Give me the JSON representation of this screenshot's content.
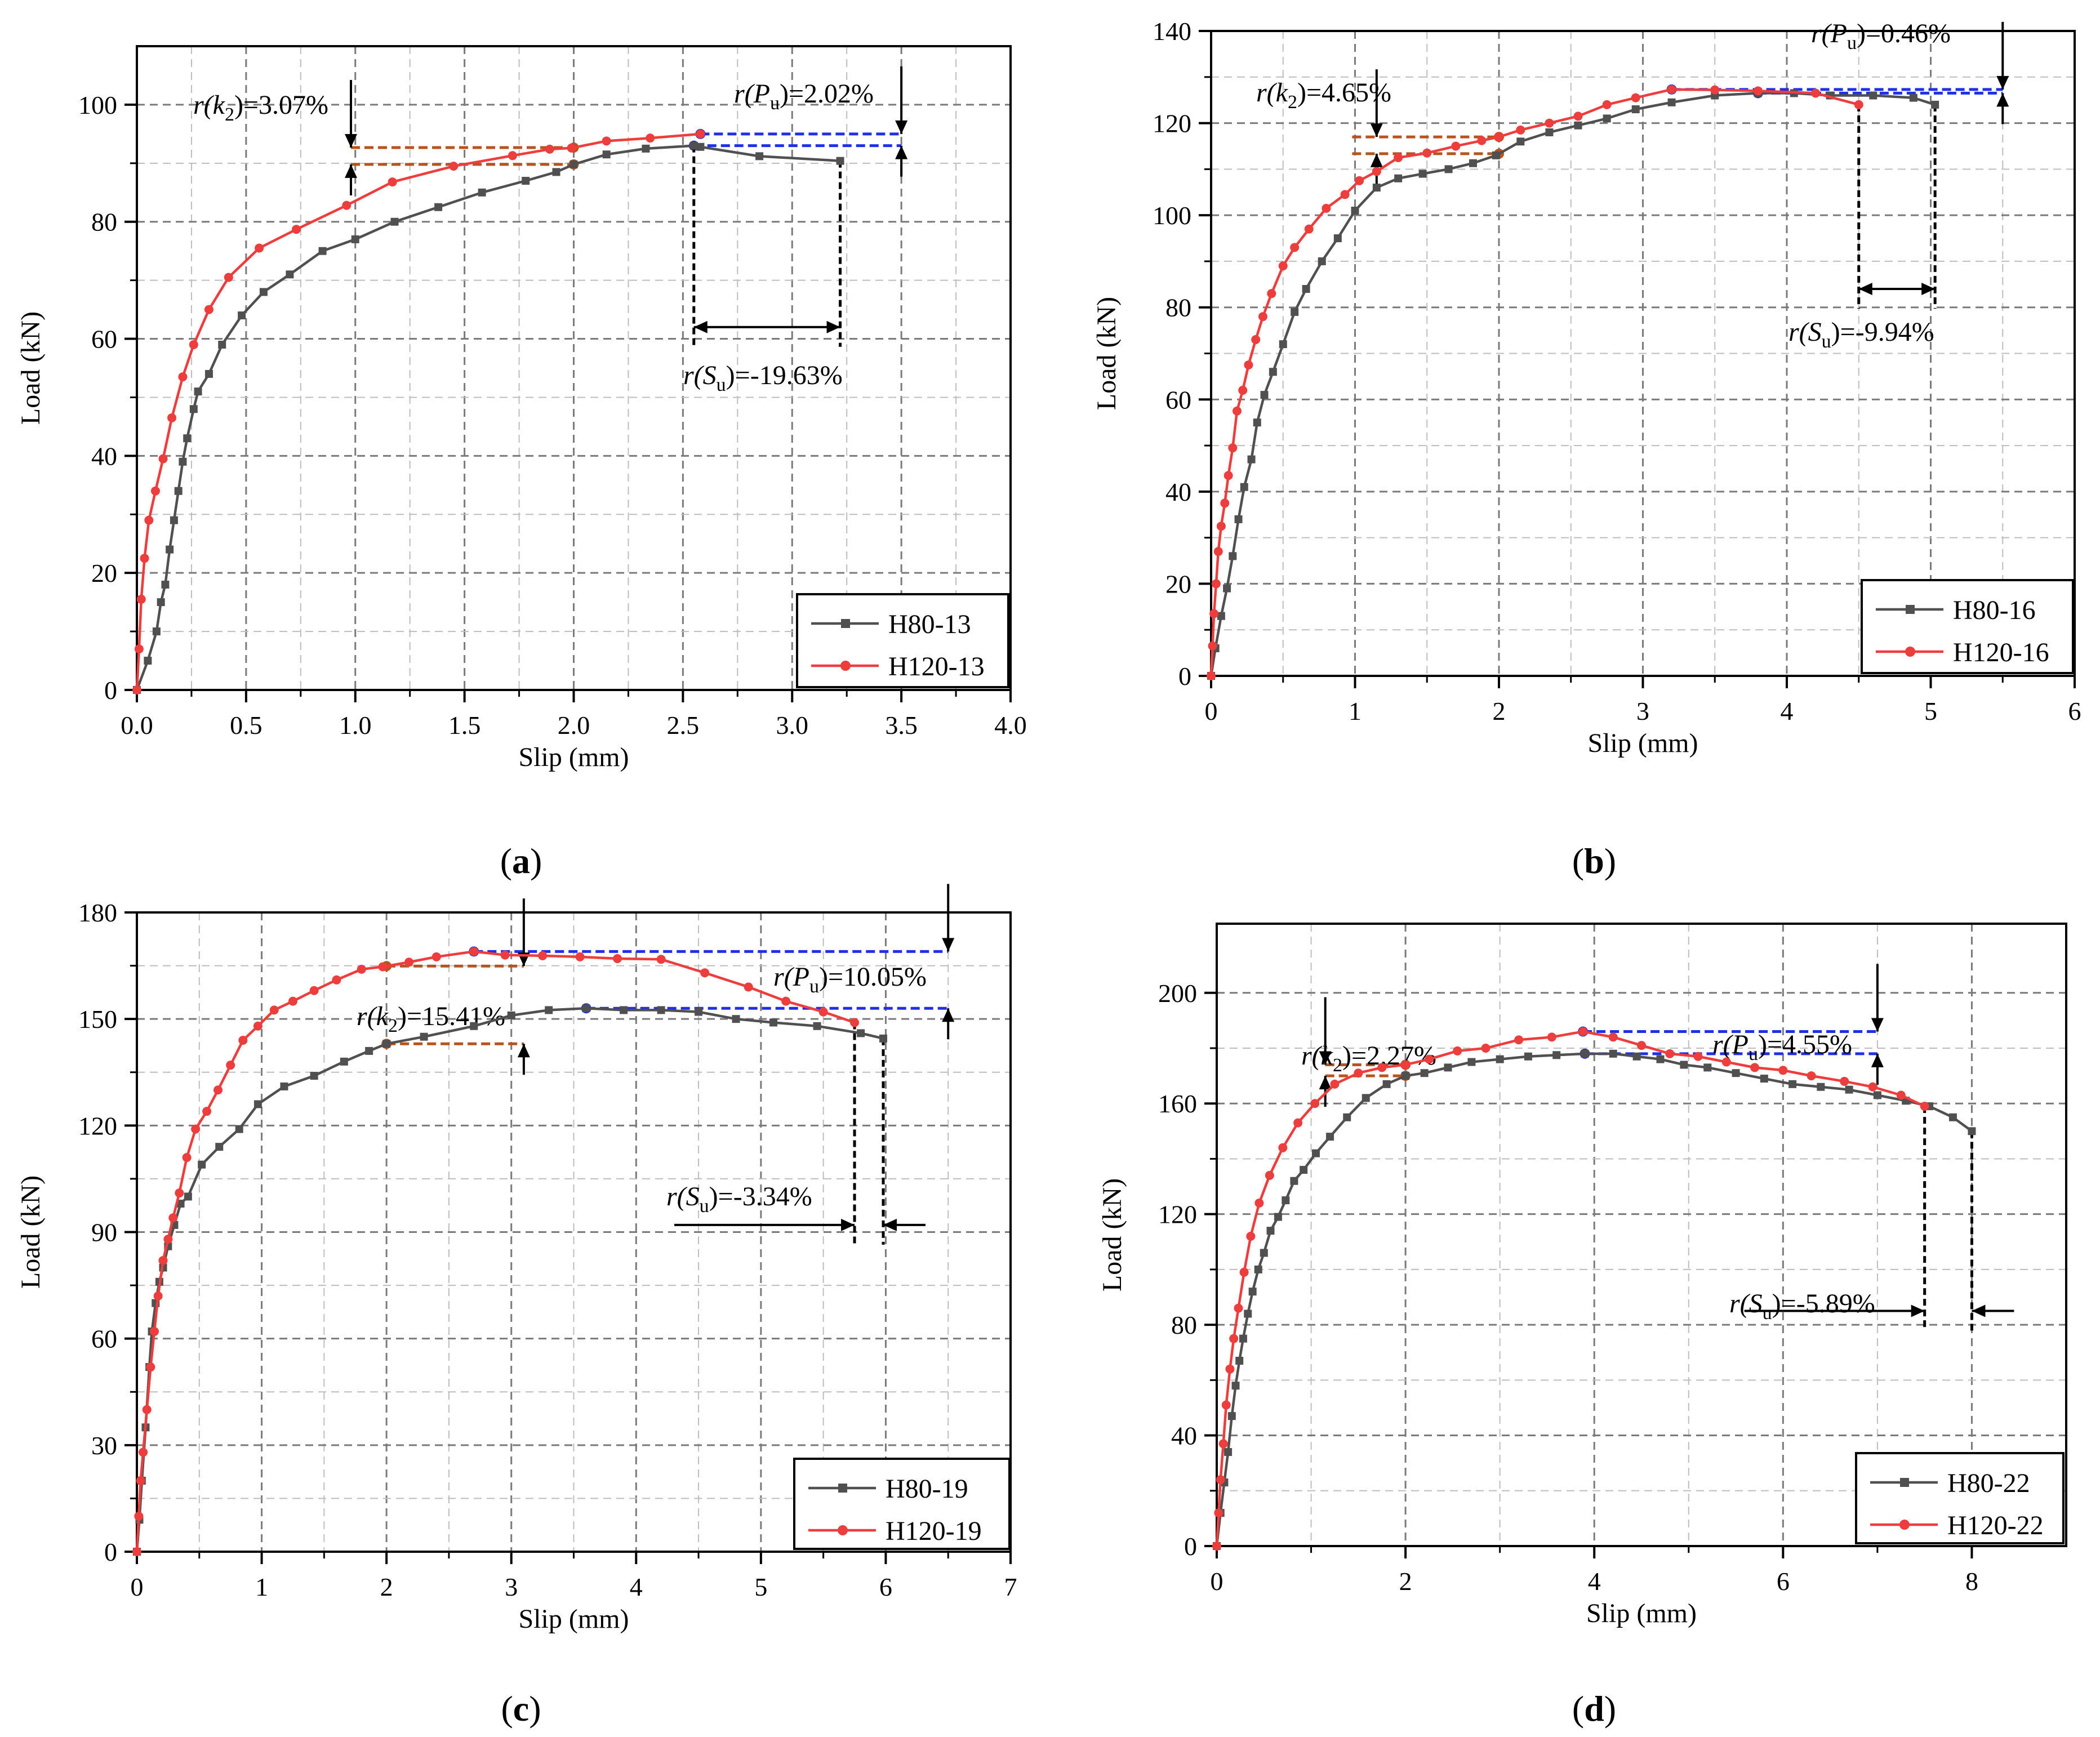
{
  "colors": {
    "series1": "#505050",
    "series2": "#ee3d3d",
    "k2_guide": "#b5541d",
    "pu_guide": "#1f2fe8",
    "su_guide": "#000000",
    "grid": "#9a9a9a"
  },
  "panels": [
    {
      "caption": "(a)",
      "caption_letter": "a",
      "annotations": {
        "k2": "=3.07%",
        "pu": "=2.02%",
        "su": "=-19.63%"
      },
      "chart_data": {
        "type": "line",
        "xlabel": "Slip (mm)",
        "ylabel": "Load (kN)",
        "xlim": [
          0,
          4.0
        ],
        "ylim": [
          0,
          110
        ],
        "xticks": [
          0,
          0.5,
          1.0,
          1.5,
          2.0,
          2.5,
          3.0,
          3.5,
          4.0
        ],
        "xticklabels": [
          "0.0",
          "0.5",
          "1.0",
          "1.5",
          "2.0",
          "2.5",
          "3.0",
          "3.5",
          "4.0"
        ],
        "yticks": [
          0,
          20,
          40,
          60,
          80,
          100
        ],
        "yticklabels": [
          "0",
          "20",
          "40",
          "60",
          "80",
          "100"
        ],
        "legend_position": "bottom-right",
        "series": [
          {
            "name": "H80-13",
            "x": [
              0,
              0.05,
              0.09,
              0.11,
              0.13,
              0.15,
              0.17,
              0.19,
              0.21,
              0.23,
              0.26,
              0.28,
              0.33,
              0.39,
              0.48,
              0.58,
              0.7,
              0.85,
              1.0,
              1.18,
              1.38,
              1.58,
              1.78,
              1.92,
              2.0,
              2.15,
              2.33,
              2.55,
              2.58,
              2.85,
              3.22
            ],
            "y": [
              0,
              5,
              10,
              15,
              18,
              24,
              29,
              34,
              39,
              43,
              48,
              51,
              54,
              59,
              64,
              68,
              71,
              75,
              77,
              80,
              82.5,
              85,
              87,
              88.5,
              89.8,
              91.5,
              92.5,
              93,
              92.8,
              91.2,
              90.4
            ]
          },
          {
            "name": "H120-13",
            "x": [
              0,
              0.01,
              0.02,
              0.035,
              0.055,
              0.085,
              0.12,
              0.16,
              0.21,
              0.26,
              0.33,
              0.42,
              0.56,
              0.73,
              0.96,
              1.17,
              1.45,
              1.72,
              1.89,
              1.99,
              2.15,
              2.35,
              2.58
            ],
            "y": [
              0,
              7,
              15.5,
              22.5,
              29,
              34,
              39.5,
              46.5,
              53.5,
              59,
              65,
              70.5,
              75.5,
              78.7,
              82.8,
              86.8,
              89.5,
              91.3,
              92.4,
              92.6,
              93.8,
              94.3,
              95
            ]
          }
        ]
      }
    },
    {
      "caption": "(b)",
      "caption_letter": "b",
      "annotations": {
        "k2": "=4.65%",
        "pu": "=0.46%",
        "su": "=-9.94%"
      },
      "chart_data": {
        "type": "line",
        "xlabel": "Slip (mm)",
        "ylabel": "Load (kN)",
        "xlim": [
          0,
          6
        ],
        "ylim": [
          0,
          140
        ],
        "xticks": [
          0,
          1,
          2,
          3,
          4,
          5,
          6
        ],
        "xticklabels": [
          "0",
          "1",
          "2",
          "3",
          "4",
          "5",
          "6"
        ],
        "yticks": [
          0,
          20,
          40,
          60,
          80,
          100,
          120,
          140
        ],
        "yticklabels": [
          "0",
          "20",
          "40",
          "60",
          "80",
          "100",
          "120",
          "140"
        ],
        "legend_position": "bottom-right",
        "series": [
          {
            "name": "H80-16",
            "x": [
              0,
              0.03,
              0.07,
              0.11,
              0.15,
              0.19,
              0.23,
              0.28,
              0.32,
              0.37,
              0.43,
              0.5,
              0.58,
              0.66,
              0.77,
              0.88,
              1.0,
              1.15,
              1.3,
              1.47,
              1.65,
              1.82,
              1.98,
              2.15,
              2.35,
              2.55,
              2.75,
              2.95,
              3.2,
              3.5,
              3.8,
              4.05,
              4.3,
              4.6,
              4.88,
              5.03
            ],
            "y": [
              0,
              6,
              13,
              19,
              26,
              34,
              41,
              47,
              55,
              61,
              66,
              72,
              79,
              84,
              90,
              95,
              101,
              106,
              108,
              109,
              110,
              111.3,
              113,
              116,
              118,
              119.5,
              121,
              123,
              124.5,
              126,
              126.5,
              126.5,
              126,
              126,
              125.5,
              124
            ]
          },
          {
            "name": "H120-16",
            "x": [
              0,
              0.01,
              0.02,
              0.035,
              0.05,
              0.07,
              0.095,
              0.12,
              0.15,
              0.18,
              0.22,
              0.26,
              0.31,
              0.36,
              0.42,
              0.5,
              0.58,
              0.68,
              0.8,
              0.93,
              1.03,
              1.15,
              1.3,
              1.5,
              1.7,
              1.88,
              2.0,
              2.15,
              2.35,
              2.55,
              2.75,
              2.95,
              3.2,
              3.5,
              3.8,
              4.2,
              4.5
            ],
            "y": [
              0,
              6.5,
              13.5,
              20,
              27,
              32.5,
              37.5,
              43.5,
              49.5,
              57.5,
              62,
              67.5,
              73,
              78,
              83,
              89,
              93,
              97,
              101.5,
              104.5,
              107.5,
              109.5,
              112.5,
              113.5,
              115,
              116.2,
              117,
              118.5,
              120,
              121.5,
              124,
              125.5,
              127.3,
              127.2,
              127,
              126.5,
              124
            ]
          }
        ]
      }
    },
    {
      "caption": "(c)",
      "caption_letter": "c",
      "annotations": {
        "k2": "=15.41%",
        "pu": "=10.05%",
        "su": "=-3.34%"
      },
      "chart_data": {
        "type": "line",
        "xlabel": "Slip (mm)",
        "ylabel": "Load (kN)",
        "xlim": [
          0,
          7
        ],
        "ylim": [
          0,
          180
        ],
        "xticks": [
          0,
          1,
          2,
          3,
          4,
          5,
          6,
          7
        ],
        "xticklabels": [
          "0",
          "1",
          "2",
          "3",
          "4",
          "5",
          "6",
          "7"
        ],
        "yticks": [
          0,
          30,
          60,
          90,
          120,
          150,
          180
        ],
        "yticklabels": [
          "0",
          "30",
          "60",
          "90",
          "120",
          "150",
          "180"
        ],
        "legend_position": "bottom-right",
        "series": [
          {
            "name": "H80-19",
            "x": [
              0,
              0.02,
              0.04,
              0.07,
              0.1,
              0.12,
              0.15,
              0.18,
              0.21,
              0.25,
              0.3,
              0.35,
              0.41,
              0.52,
              0.66,
              0.82,
              0.97,
              1.18,
              1.42,
              1.66,
              1.86,
              2.0,
              2.3,
              2.7,
              3.0,
              3.3,
              3.6,
              3.9,
              4.2,
              4.5,
              4.8,
              5.1,
              5.45,
              5.8,
              5.98
            ],
            "y": [
              0,
              9,
              20,
              35,
              52,
              62,
              70,
              76,
              80,
              86,
              92,
              98,
              100,
              109,
              114,
              119,
              126,
              131,
              134,
              138,
              141,
              143,
              145,
              148,
              151,
              152.5,
              153,
              152.5,
              152.5,
              152,
              150,
              149,
              148,
              146,
              144.5
            ]
          },
          {
            "name": "H120-19",
            "x": [
              0,
              0.015,
              0.03,
              0.05,
              0.08,
              0.11,
              0.14,
              0.17,
              0.21,
              0.25,
              0.29,
              0.34,
              0.4,
              0.47,
              0.56,
              0.65,
              0.75,
              0.85,
              0.97,
              1.1,
              1.25,
              1.42,
              1.6,
              1.8,
              1.97,
              2.18,
              2.4,
              2.7,
              2.95,
              3.25,
              3.55,
              3.85,
              4.2,
              4.55,
              4.9,
              5.2,
              5.5,
              5.75
            ],
            "y": [
              0,
              10,
              20,
              28,
              40,
              52,
              62,
              72,
              82,
              88,
              94,
              101,
              111,
              119,
              124,
              130,
              137,
              144,
              148,
              152.5,
              155,
              158,
              161,
              164,
              164.7,
              166,
              167.5,
              169,
              168,
              167.8,
              167.5,
              167,
              166.8,
              163,
              159,
              155,
              152,
              149
            ]
          }
        ]
      }
    },
    {
      "caption": "(d)",
      "caption_letter": "d",
      "annotations": {
        "k2": "=2.27%",
        "pu": "=4.55%",
        "su": "=-5.89%"
      },
      "chart_data": {
        "type": "line",
        "xlabel": "Slip (mm)",
        "ylabel": "Load (kN)",
        "xlim": [
          0,
          9
        ],
        "ylim": [
          0,
          225
        ],
        "xticks": [
          0,
          2,
          4,
          6,
          8
        ],
        "xticklabels": [
          "0",
          "2",
          "4",
          "6",
          "8"
        ],
        "yticks": [
          0,
          40,
          80,
          120,
          160,
          200
        ],
        "yticklabels": [
          "0",
          "40",
          "80",
          "120",
          "160",
          "200"
        ],
        "legend_position": "bottom-right",
        "series": [
          {
            "name": "H80-22",
            "x": [
              0,
              0.04,
              0.08,
              0.12,
              0.16,
              0.2,
              0.24,
              0.28,
              0.33,
              0.38,
              0.44,
              0.5,
              0.57,
              0.65,
              0.73,
              0.82,
              0.92,
              1.05,
              1.2,
              1.38,
              1.58,
              1.8,
              2.0,
              2.2,
              2.45,
              2.7,
              3.0,
              3.3,
              3.6,
              3.9,
              4.2,
              4.45,
              4.7,
              4.95,
              5.2,
              5.5,
              5.8,
              6.1,
              6.4,
              6.7,
              7.0,
              7.3,
              7.55,
              7.8,
              8.0
            ],
            "y": [
              0,
              12,
              23,
              34,
              47,
              58,
              67,
              75,
              84,
              92,
              100,
              106,
              114,
              119,
              125,
              132,
              136,
              142,
              148,
              155,
              162,
              167,
              170,
              171,
              173,
              175,
              176,
              177,
              177.5,
              178,
              178,
              177,
              176,
              174,
              173,
              171,
              169,
              167,
              166,
              165,
              163,
              161,
              159,
              155,
              150
            ]
          },
          {
            "name": "H120-22",
            "x": [
              0,
              0.02,
              0.04,
              0.07,
              0.1,
              0.14,
              0.18,
              0.23,
              0.29,
              0.36,
              0.45,
              0.56,
              0.7,
              0.86,
              1.04,
              1.25,
              1.5,
              1.75,
              2.0,
              2.25,
              2.55,
              2.85,
              3.2,
              3.55,
              3.88,
              4.2,
              4.5,
              4.8,
              5.1,
              5.4,
              5.7,
              6.0,
              6.3,
              6.65,
              6.95,
              7.25,
              7.5
            ],
            "y": [
              0,
              12,
              24,
              37,
              51,
              64,
              75,
              86,
              99,
              112,
              124,
              134,
              144,
              153,
              160,
              167,
              171,
              173,
              174,
              176,
              179,
              180,
              183,
              184,
              186,
              184,
              181,
              178,
              177,
              175,
              173,
              172,
              170,
              168,
              166,
              163,
              159
            ]
          }
        ]
      }
    }
  ]
}
